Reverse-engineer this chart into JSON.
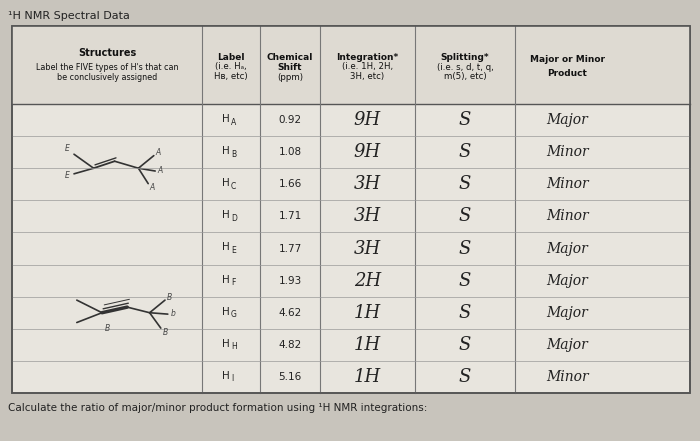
{
  "title": "¹H NMR Spectral Data",
  "bg_color": "#c8c4bc",
  "table_bg": "#e8e5de",
  "header_bg": "#dedad2",
  "footer": "Calculate the ratio of major/minor product formation using ¹H NMR integrations:",
  "col_header_line1": [
    "Structures",
    "Label",
    "Chemical",
    "Integration*",
    "Splitting*",
    "Major or Minor"
  ],
  "col_header_line2": [
    "",
    "(i.e. Hₐ,",
    "Shift",
    "(i.e. 1H, 2H,",
    "(i.e. s, d, t, q,",
    "Product"
  ],
  "col_header_line3": [
    "Label the FIVE types of H's that can",
    "Hʙ, etc)",
    "(ppm)",
    "3H, etc)",
    "m(5), etc)",
    ""
  ],
  "col_header_line4": [
    "be conclusively assigned",
    "",
    "",
    "",
    "",
    ""
  ],
  "label_col": [
    "HA",
    "HB",
    "HC",
    "HD",
    "HE",
    "HF",
    "HG",
    "HH",
    "HI"
  ],
  "shift_col": [
    "0.92",
    "1.08",
    "1.66",
    "1.71",
    "1.77",
    "1.93",
    "4.62",
    "4.82",
    "5.16"
  ],
  "integration_col": [
    "9H",
    "9H",
    "3H",
    "3H",
    "3H",
    "2H",
    "1H",
    "1H",
    "1H"
  ],
  "splitting_col": [
    "S",
    "S",
    "S",
    "S",
    "S",
    "S",
    "S",
    "S",
    "S"
  ],
  "product_col": [
    "Major",
    "Minor",
    "Minor",
    "Minor",
    "Major",
    "Major",
    "Major",
    "Major",
    "Minor"
  ]
}
